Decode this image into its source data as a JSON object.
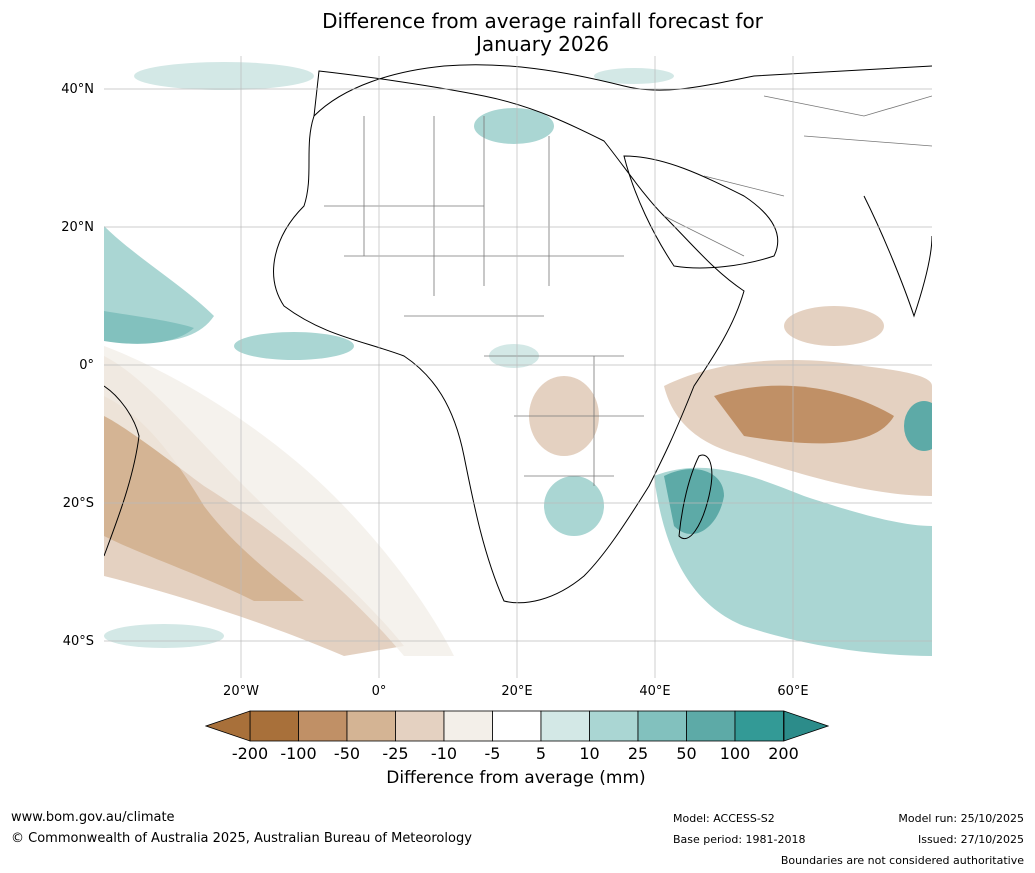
{
  "title": {
    "line1": "Difference from average rainfall forecast for",
    "line2": "January 2026"
  },
  "axes": {
    "lat_labels": [
      "40°N",
      "20°N",
      "0°",
      "20°S",
      "40°S"
    ],
    "lon_labels": [
      "20°W",
      "0°",
      "20°E",
      "40°E",
      "60°E"
    ]
  },
  "colorbar": {
    "ticks": [
      "-200",
      "-100",
      "-50",
      "-25",
      "-10",
      "-5",
      "5",
      "10",
      "25",
      "50",
      "100",
      "200"
    ],
    "colors": [
      "#a8703a",
      "#c09066",
      "#d4b494",
      "#e4d1c1",
      "#f3efe9",
      "#ffffff",
      "#d3e8e6",
      "#aad6d3",
      "#82c1be",
      "#5daaa7",
      "#339a96"
    ],
    "end_low_color": "#a8703a",
    "end_high_color": "#2c8c8a",
    "label": "Difference from average (mm)"
  },
  "footer": {
    "website": "www.bom.gov.au/climate",
    "copyright": "© Commonwealth of Australia 2025, Australian Bureau of Meteorology",
    "model": "Model: ACCESS-S2",
    "base_period": "Base period: 1981-2018",
    "model_run": "Model run: 25/10/2025",
    "issued": "Issued: 27/10/2025",
    "disclaimer": "Boundaries are not considered authoritative"
  }
}
